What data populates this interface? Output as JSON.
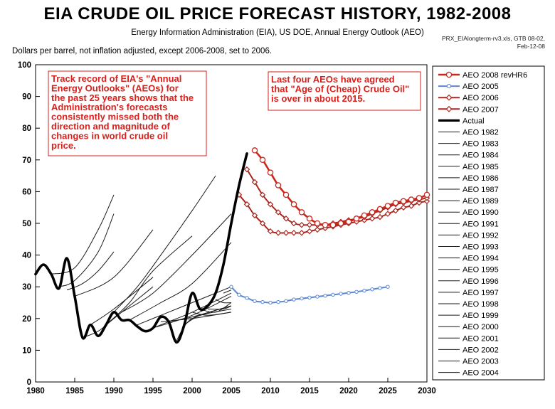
{
  "header": {
    "title": "EIA CRUDE OIL PRICE FORECAST HISTORY, 1982-2008",
    "subtitle": "Energy Information Administration (EIA), US DOE, Annual Energy Outlook (AEO)",
    "source": "PRX_EIAlongterm-rv3.xls, GTB 08-02, Feb-12-08",
    "units": "Dollars per barrel, not inflation adjusted, except 2006-2008, set to 2006."
  },
  "chart_data": {
    "type": "line",
    "xlim": [
      1980,
      2030
    ],
    "ylim": [
      0,
      100
    ],
    "x_ticks": [
      1980,
      1985,
      1990,
      1995,
      2000,
      2005,
      2010,
      2015,
      2020,
      2025,
      2030
    ],
    "y_ticks": [
      0,
      10,
      20,
      30,
      40,
      50,
      60,
      70,
      80,
      90,
      100
    ],
    "grid": false,
    "legend_position": "right",
    "annotations": [
      {
        "lines": [
          "Track record of EIA's \"Annual",
          "Energy Outlooks\" (AEOs) for",
          "the past 25 years shows that the",
          "Administration's forecasts",
          "consistently missed both the",
          "direction and magnitude of",
          "changes in world crude oil",
          "price."
        ]
      },
      {
        "lines": [
          "Last four AEOs have agreed",
          "that \"Age of (Cheap) Crude Oil\"",
          "is over in about 2015."
        ]
      }
    ],
    "colors": {
      "red": "#c8271e",
      "blue": "#5b86d2",
      "dark_red": "#a8261d",
      "black": "#000000",
      "thin": "#1a1a1a",
      "annotation": "#d9201c"
    },
    "series": [
      {
        "name": "AEO 2008 revHR6",
        "kind": "red-open",
        "points": [
          [
            2008,
            73
          ],
          [
            2009,
            70
          ],
          [
            2010,
            66
          ],
          [
            2011,
            62
          ],
          [
            2012,
            59
          ],
          [
            2013,
            56
          ],
          [
            2014,
            53.5
          ],
          [
            2015,
            51.5
          ],
          [
            2016,
            50
          ],
          [
            2017,
            49.5
          ],
          [
            2018,
            49.5
          ],
          [
            2019,
            50
          ],
          [
            2020,
            50.5
          ],
          [
            2021,
            51.5
          ],
          [
            2022,
            52.5
          ],
          [
            2023,
            53.5
          ],
          [
            2024,
            54.5
          ],
          [
            2025,
            55.5
          ],
          [
            2026,
            56.5
          ],
          [
            2027,
            57
          ],
          [
            2028,
            57.5
          ],
          [
            2029,
            58
          ],
          [
            2030,
            59
          ]
        ]
      },
      {
        "name": "AEO 2005",
        "kind": "blue",
        "points": [
          [
            2005,
            30
          ],
          [
            2006,
            27.5
          ],
          [
            2007,
            26.5
          ],
          [
            2008,
            25.5
          ],
          [
            2009,
            25.2
          ],
          [
            2010,
            25
          ],
          [
            2011,
            25.2
          ],
          [
            2012,
            25.5
          ],
          [
            2013,
            26
          ],
          [
            2014,
            26.3
          ],
          [
            2015,
            26.6
          ],
          [
            2016,
            26.9
          ],
          [
            2017,
            27.2
          ],
          [
            2018,
            27.5
          ],
          [
            2019,
            27.8
          ],
          [
            2020,
            28.1
          ],
          [
            2021,
            28.4
          ],
          [
            2022,
            28.8
          ],
          [
            2023,
            29.2
          ],
          [
            2024,
            29.6
          ],
          [
            2025,
            30
          ]
        ]
      },
      {
        "name": "AEO 2006",
        "kind": "diamond",
        "points": [
          [
            2006,
            59
          ],
          [
            2007,
            56
          ],
          [
            2008,
            52.5
          ],
          [
            2009,
            50
          ],
          [
            2010,
            47.5
          ],
          [
            2011,
            47
          ],
          [
            2012,
            47
          ],
          [
            2013,
            47
          ],
          [
            2014,
            47
          ],
          [
            2015,
            47.5
          ],
          [
            2016,
            48
          ],
          [
            2017,
            48.5
          ],
          [
            2018,
            49
          ],
          [
            2019,
            49.5
          ],
          [
            2020,
            50
          ],
          [
            2021,
            50.5
          ],
          [
            2022,
            51
          ],
          [
            2023,
            51.5
          ],
          [
            2024,
            52
          ],
          [
            2025,
            53
          ],
          [
            2026,
            54
          ],
          [
            2027,
            55
          ],
          [
            2028,
            55.5
          ],
          [
            2029,
            56.5
          ],
          [
            2030,
            57
          ]
        ]
      },
      {
        "name": "AEO 2007",
        "kind": "diamond",
        "points": [
          [
            2007,
            67
          ],
          [
            2008,
            63
          ],
          [
            2009,
            59
          ],
          [
            2010,
            56
          ],
          [
            2011,
            53.5
          ],
          [
            2012,
            51.5
          ],
          [
            2013,
            50
          ],
          [
            2014,
            49.5
          ],
          [
            2015,
            49.5
          ],
          [
            2016,
            49.5
          ],
          [
            2017,
            49.5
          ],
          [
            2018,
            50
          ],
          [
            2019,
            50.5
          ],
          [
            2020,
            51
          ],
          [
            2021,
            51.5
          ],
          [
            2022,
            52
          ],
          [
            2023,
            53
          ],
          [
            2024,
            54
          ],
          [
            2025,
            55
          ],
          [
            2026,
            56
          ],
          [
            2027,
            56.5
          ],
          [
            2028,
            57
          ],
          [
            2029,
            57.5
          ],
          [
            2030,
            58
          ]
        ]
      },
      {
        "name": "Actual",
        "kind": "actual",
        "points": [
          [
            1980,
            34
          ],
          [
            1981,
            37
          ],
          [
            1982,
            34
          ],
          [
            1983,
            29.5
          ],
          [
            1984,
            39
          ],
          [
            1985,
            27
          ],
          [
            1986,
            14
          ],
          [
            1987,
            18
          ],
          [
            1988,
            14.5
          ],
          [
            1989,
            18
          ],
          [
            1990,
            22
          ],
          [
            1991,
            19.5
          ],
          [
            1992,
            19.5
          ],
          [
            1993,
            17.5
          ],
          [
            1994,
            16
          ],
          [
            1995,
            17
          ],
          [
            1996,
            20.5
          ],
          [
            1997,
            19
          ],
          [
            1998,
            12.5
          ],
          [
            1999,
            18
          ],
          [
            2000,
            28
          ],
          [
            2001,
            23
          ],
          [
            2002,
            24
          ],
          [
            2003,
            28
          ],
          [
            2004,
            37
          ],
          [
            2005,
            50
          ],
          [
            2006,
            62
          ],
          [
            2007,
            72
          ]
        ]
      },
      {
        "name": "AEO 1982",
        "kind": "thin",
        "points": [
          [
            1982,
            34
          ],
          [
            1985,
            36
          ],
          [
            1988,
            48
          ],
          [
            1990,
            59
          ]
        ]
      },
      {
        "name": "AEO 1983",
        "kind": "thin",
        "points": [
          [
            1983,
            30
          ],
          [
            1985,
            32
          ],
          [
            1988,
            41
          ],
          [
            1990,
            53
          ]
        ]
      },
      {
        "name": "AEO 1984",
        "kind": "thin",
        "points": [
          [
            1984,
            29
          ],
          [
            1986,
            31
          ],
          [
            1988,
            35
          ],
          [
            1990,
            41
          ]
        ]
      },
      {
        "name": "AEO 1985",
        "kind": "thin",
        "points": [
          [
            1985,
            27
          ],
          [
            1990,
            33
          ],
          [
            1995,
            48
          ]
        ]
      },
      {
        "name": "AEO 1986",
        "kind": "thin",
        "points": [
          [
            1986,
            14
          ],
          [
            1988,
            16
          ],
          [
            1990,
            20
          ],
          [
            1995,
            30
          ]
        ]
      },
      {
        "name": "AEO 1987",
        "kind": "thin",
        "points": [
          [
            1987,
            18
          ],
          [
            1990,
            23
          ],
          [
            1995,
            33
          ]
        ]
      },
      {
        "name": "AEO 1989",
        "kind": "thin",
        "points": [
          [
            1989,
            18
          ],
          [
            1992,
            25
          ],
          [
            1995,
            35
          ],
          [
            2000,
            46
          ]
        ]
      },
      {
        "name": "AEO 1990",
        "kind": "thin",
        "points": [
          [
            1990,
            22
          ],
          [
            1993,
            30
          ],
          [
            1996,
            40
          ],
          [
            2000,
            54
          ],
          [
            2003,
            65
          ]
        ]
      },
      {
        "name": "AEO 1991",
        "kind": "thin",
        "points": [
          [
            1991,
            22
          ],
          [
            1995,
            28
          ],
          [
            2000,
            40
          ],
          [
            2005,
            53
          ]
        ]
      },
      {
        "name": "AEO 1992",
        "kind": "thin",
        "points": [
          [
            1992,
            19.5
          ],
          [
            1996,
            25
          ],
          [
            2000,
            31
          ],
          [
            2005,
            44
          ]
        ]
      },
      {
        "name": "AEO 1993",
        "kind": "thin",
        "points": [
          [
            1993,
            18
          ],
          [
            1996,
            21
          ],
          [
            2000,
            25
          ],
          [
            2005,
            30
          ]
        ]
      },
      {
        "name": "AEO 1994",
        "kind": "thin",
        "points": [
          [
            1994,
            16
          ],
          [
            1997,
            19
          ],
          [
            2000,
            22
          ],
          [
            2005,
            28
          ]
        ]
      },
      {
        "name": "AEO 1995",
        "kind": "thin",
        "points": [
          [
            1995,
            17
          ],
          [
            2000,
            21
          ],
          [
            2005,
            27
          ]
        ]
      },
      {
        "name": "AEO 1996",
        "kind": "thin",
        "points": [
          [
            1996,
            19
          ],
          [
            2000,
            20
          ],
          [
            2005,
            22
          ]
        ]
      },
      {
        "name": "AEO 1997",
        "kind": "thin",
        "points": [
          [
            1997,
            19
          ],
          [
            2000,
            20.5
          ],
          [
            2005,
            24
          ]
        ]
      },
      {
        "name": "AEO 1998",
        "kind": "thin",
        "points": [
          [
            1998,
            13
          ],
          [
            2000,
            20
          ],
          [
            2005,
            23
          ]
        ]
      },
      {
        "name": "AEO 1999",
        "kind": "thin",
        "points": [
          [
            1999,
            18
          ],
          [
            2001,
            21
          ],
          [
            2005,
            24
          ]
        ]
      },
      {
        "name": "AEO 2000",
        "kind": "thin",
        "points": [
          [
            2000,
            22
          ],
          [
            2002,
            21
          ],
          [
            2005,
            22
          ]
        ]
      },
      {
        "name": "AEO 2001",
        "kind": "thin",
        "points": [
          [
            2001,
            23
          ],
          [
            2003,
            22
          ],
          [
            2005,
            25
          ]
        ]
      },
      {
        "name": "AEO 2002",
        "kind": "thin",
        "points": [
          [
            2002,
            23
          ],
          [
            2004,
            23
          ],
          [
            2005,
            24
          ]
        ]
      },
      {
        "name": "AEO 2003",
        "kind": "thin",
        "points": [
          [
            2003,
            26
          ],
          [
            2004,
            25
          ],
          [
            2005,
            25
          ]
        ]
      },
      {
        "name": "AEO 2004",
        "kind": "thin",
        "points": [
          [
            2004,
            28
          ],
          [
            2005,
            29
          ]
        ]
      }
    ]
  }
}
